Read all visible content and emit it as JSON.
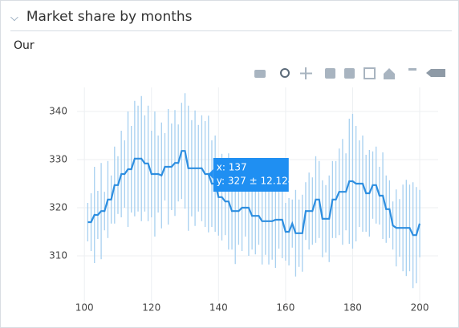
{
  "header": {
    "title": "Market share by months",
    "subtitle": "Our"
  },
  "chart_data": {
    "type": "errorline",
    "x": [
      101,
      102,
      103,
      104,
      105,
      106,
      107,
      108,
      109,
      110,
      111,
      112,
      113,
      114,
      115,
      116,
      117,
      118,
      119,
      120,
      121,
      122,
      123,
      124,
      125,
      126,
      127,
      128,
      129,
      130,
      131,
      132,
      133,
      134,
      135,
      136,
      137,
      138,
      139,
      140,
      141,
      142,
      143,
      144,
      145,
      146,
      147,
      148,
      149,
      150,
      151,
      152,
      153,
      154,
      155,
      156,
      157,
      158,
      159,
      160,
      161,
      162,
      163,
      164,
      165,
      166,
      167,
      168,
      169,
      170,
      171,
      172,
      173,
      174,
      175,
      176,
      177,
      178,
      179,
      180,
      181,
      182,
      183,
      184,
      185,
      186,
      187,
      188,
      189,
      190,
      191,
      192,
      193,
      194,
      195,
      196,
      197,
      198,
      199,
      200
    ],
    "series": [
      {
        "color": "#2d8ee0",
        "error_color": "#a7d0f0",
        "values": [
          317,
          317,
          318.5,
          318.5,
          319.3,
          319.3,
          321.7,
          321.7,
          324.7,
          324.7,
          327,
          327,
          328,
          328,
          330.2,
          330.2,
          330.2,
          329.2,
          329.2,
          327,
          327,
          327,
          326.7,
          328.5,
          328.5,
          328.5,
          329.3,
          329.3,
          331.8,
          331.8,
          328.2,
          328.2,
          328.2,
          328.2,
          328.2,
          327,
          327,
          325,
          325,
          322.2,
          322.2,
          321.3,
          321.3,
          319.3,
          319.3,
          319.3,
          320,
          320,
          320,
          318.3,
          318.3,
          318.3,
          317.2,
          317.2,
          317.2,
          317.2,
          317.5,
          317.5,
          317.5,
          315,
          315,
          316.7,
          314.7,
          314.7,
          314.7,
          319.3,
          319.3,
          319.3,
          321.7,
          321.7,
          317.7,
          317.7,
          317.7,
          321.7,
          321.7,
          323.3,
          323.3,
          323.3,
          325.5,
          325.5,
          325,
          325,
          325,
          323,
          323,
          324.7,
          324.7,
          322.5,
          322.5,
          319.7,
          319.7,
          316.3,
          315.8,
          315.8,
          315.8,
          315.8,
          315.8,
          314.3,
          314.3,
          316.7
        ],
        "errors": [
          4,
          6,
          10,
          5,
          10,
          4,
          8,
          5,
          8,
          6,
          9,
          7,
          12,
          9,
          12,
          11,
          13,
          10,
          12,
          9,
          13,
          8,
          11,
          7,
          12,
          9,
          11,
          8,
          10,
          12,
          13,
          10,
          12,
          9,
          11,
          11,
          12.124,
          9,
          10,
          8,
          9,
          7,
          10,
          8,
          11,
          7,
          9,
          6,
          10,
          7,
          8,
          6,
          9,
          7,
          9,
          8,
          10,
          6,
          8,
          6,
          7,
          5,
          9,
          7,
          8,
          6,
          8,
          7,
          9,
          8,
          8,
          7,
          9,
          8,
          8,
          9,
          11,
          8,
          13,
          14,
          12,
          9,
          10,
          8,
          9,
          7,
          8,
          6,
          9,
          7,
          6,
          5,
          8,
          6,
          9,
          10,
          9,
          11,
          10,
          7
        ]
      }
    ],
    "xlim": [
      97.8,
      205.5
    ],
    "ylim": [
      300.5,
      345
    ],
    "xticks": [
      100,
      120,
      140,
      160,
      180,
      200
    ],
    "yticks": [
      310,
      320,
      330,
      340
    ],
    "grid": true,
    "hover": {
      "x_text": "x: 137",
      "y_text": "y: 327 ± 12.124"
    }
  }
}
